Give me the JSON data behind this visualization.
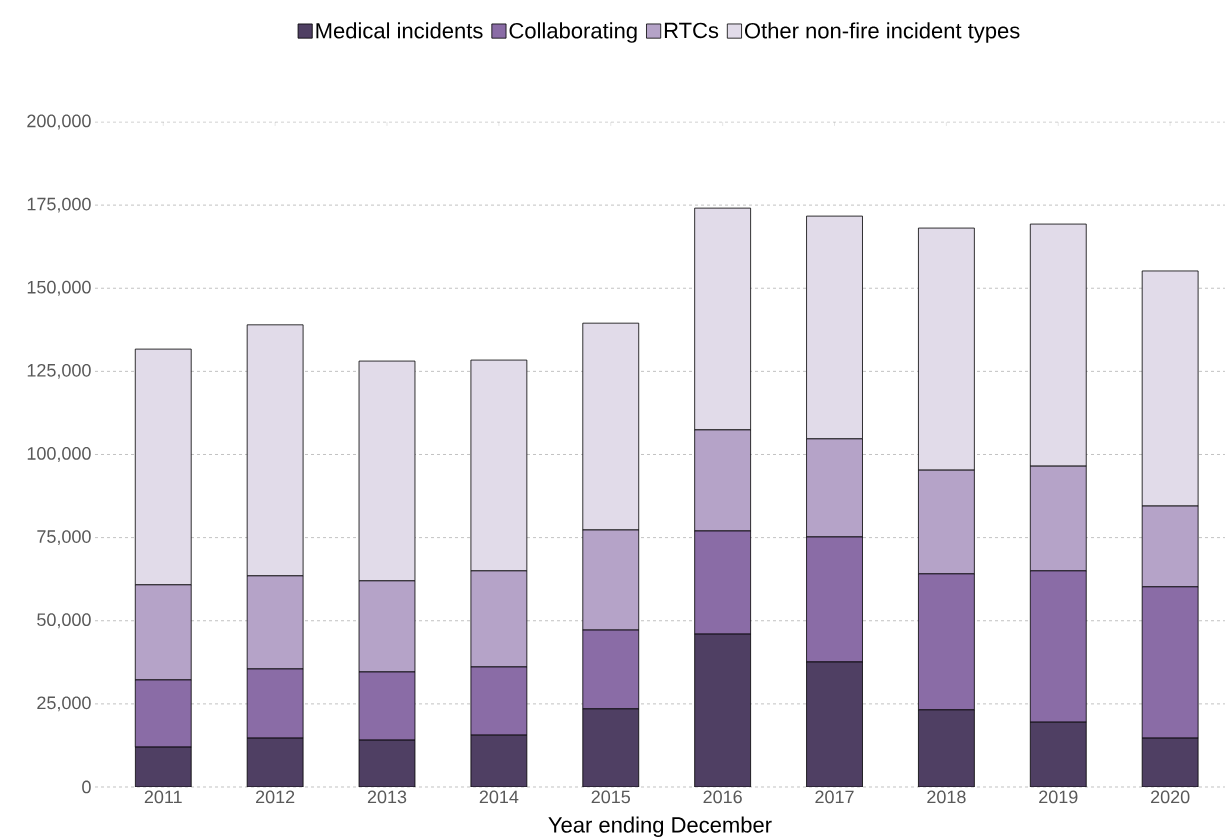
{
  "chart_data": {
    "type": "bar",
    "stacked": true,
    "xlabel": "Year ending December",
    "categories": [
      "2011",
      "2012",
      "2013",
      "2014",
      "2015",
      "2016",
      "2017",
      "2018",
      "2019",
      "2020"
    ],
    "series": [
      {
        "name": "Medical incidents",
        "color": "#4f3f63",
        "values": [
          12000,
          14700,
          14100,
          15600,
          23500,
          46000,
          37600,
          23200,
          19500,
          14700
        ]
      },
      {
        "name": "Collaborating",
        "color": "#8a6ca6",
        "values": [
          20200,
          20800,
          20500,
          20500,
          23700,
          31000,
          37600,
          40900,
          45500,
          45500
        ]
      },
      {
        "name": "RTCs",
        "color": "#b5a3c8",
        "values": [
          28600,
          28000,
          27400,
          28900,
          30100,
          30400,
          29500,
          31200,
          31500,
          24300
        ]
      },
      {
        "name": "Other non-fire incident types",
        "color": "#e1dbe9",
        "values": [
          70900,
          75500,
          66100,
          63400,
          62200,
          66700,
          67000,
          72800,
          72800,
          70700
        ]
      }
    ],
    "ylim": [
      0,
      200000
    ],
    "yticks": [
      {
        "value": 0,
        "label": "0"
      },
      {
        "value": 25000,
        "label": "25,000"
      },
      {
        "value": 50000,
        "label": "50,000"
      },
      {
        "value": 75000,
        "label": "75,000"
      },
      {
        "value": 100000,
        "label": "100,000"
      },
      {
        "value": 125000,
        "label": "125,000"
      },
      {
        "value": 150000,
        "label": "150,000"
      },
      {
        "value": 175000,
        "label": "175,000"
      },
      {
        "value": 200000,
        "label": "200,000"
      }
    ],
    "grid": "y",
    "legend": "top"
  }
}
